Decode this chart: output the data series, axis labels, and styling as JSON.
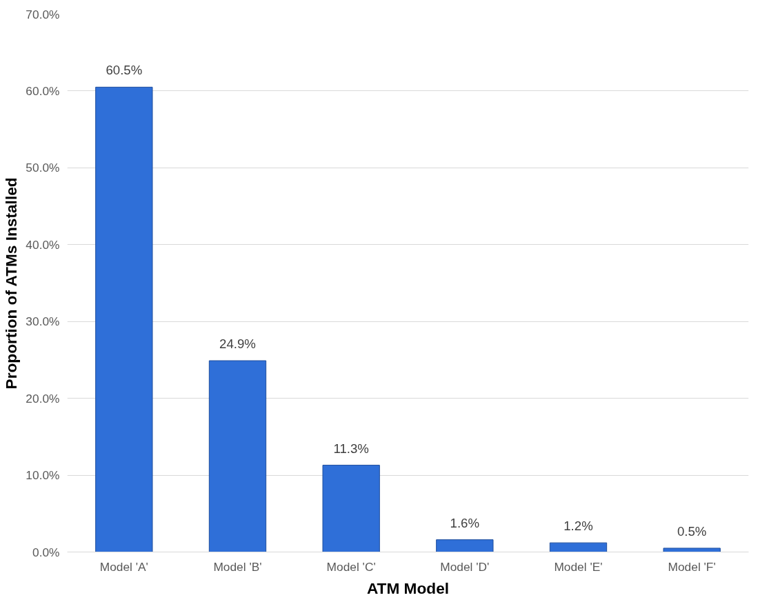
{
  "chart_data": {
    "type": "bar",
    "xlabel": "ATM Model",
    "ylabel": "Proportion of ATMs Installed",
    "categories": [
      "Model 'A'",
      "Model 'B'",
      "Model 'C'",
      "Model 'D'",
      "Model 'E'",
      "Model 'F'"
    ],
    "values": [
      60.5,
      24.9,
      11.3,
      1.6,
      1.2,
      0.5
    ],
    "value_labels": [
      "60.5%",
      "24.9%",
      "11.3%",
      "1.6%",
      "1.2%",
      "0.5%"
    ],
    "color": "#2f6fd8",
    "ylim": [
      0,
      70
    ],
    "yticks": [
      {
        "value": 0,
        "label": "0.0%"
      },
      {
        "value": 10,
        "label": "10.0%"
      },
      {
        "value": 20,
        "label": "20.0%"
      },
      {
        "value": 30,
        "label": "30.0%"
      },
      {
        "value": 40,
        "label": "40.0%"
      },
      {
        "value": 50,
        "label": "50.0%"
      },
      {
        "value": 60,
        "label": "60.0%"
      },
      {
        "value": 70,
        "label": "70.0%"
      }
    ],
    "grid": "y"
  }
}
